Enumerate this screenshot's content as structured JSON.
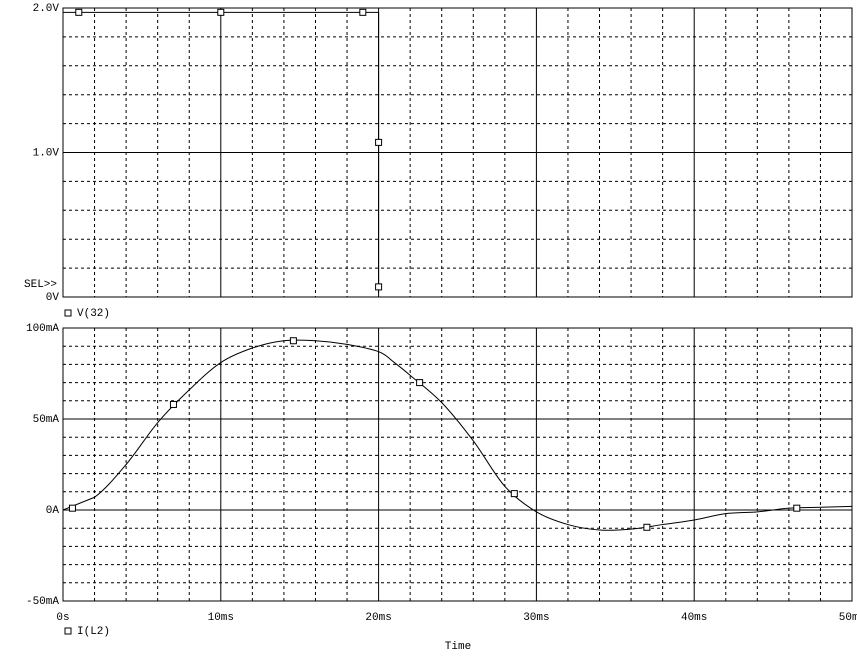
{
  "chart_data": [
    {
      "type": "line",
      "selection_label": "SEL>>",
      "xlim": [
        0,
        50
      ],
      "xticks": [
        0,
        10,
        20,
        30,
        40,
        50
      ],
      "ylim": [
        0,
        2
      ],
      "yticks": [
        {
          "value": 0,
          "label": "0V"
        },
        {
          "value": 1,
          "label": "1.0V"
        },
        {
          "value": 2,
          "label": "2.0V"
        }
      ],
      "grid": true,
      "series": [
        {
          "name": "V(32)",
          "color": "#000000",
          "x": [
            0,
            20,
            20
          ],
          "values": [
            1.97,
            1.97,
            0.03
          ],
          "markers": {
            "x": [
              1,
              10,
              19,
              20,
              20
            ],
            "values": [
              1.97,
              1.97,
              1.97,
              1.07,
              0.07
            ]
          }
        }
      ]
    },
    {
      "type": "line",
      "x_label": "Time",
      "xlim": [
        0,
        50
      ],
      "xticks": [
        {
          "value": 0,
          "label": "0s"
        },
        {
          "value": 10,
          "label": "10ms"
        },
        {
          "value": 20,
          "label": "20ms"
        },
        {
          "value": 30,
          "label": "30ms"
        },
        {
          "value": 40,
          "label": "40ms"
        },
        {
          "value": 50,
          "label": "50ms"
        }
      ],
      "ylim": [
        -50,
        100
      ],
      "yticks": [
        {
          "value": -50,
          "label": "-50mA"
        },
        {
          "value": 0,
          "label": "0A"
        },
        {
          "value": 50,
          "label": "50mA"
        },
        {
          "value": 100,
          "label": "100mA"
        }
      ],
      "grid": true,
      "series": [
        {
          "name": "I(L2)",
          "color": "#000000",
          "x": [
            0,
            2,
            4,
            6,
            8,
            10,
            12,
            14,
            16,
            18,
            20,
            21,
            22,
            24,
            26,
            28,
            30,
            32,
            34,
            36,
            38,
            40,
            42,
            44,
            46,
            48,
            50
          ],
          "values": [
            0,
            7,
            25,
            48,
            66,
            81,
            89,
            93,
            93,
            91,
            87,
            81,
            74,
            59,
            38,
            13,
            -1,
            -8,
            -11,
            -10.5,
            -8,
            -5.5,
            -2,
            -1,
            1,
            1.5,
            2
          ],
          "markers": {
            "x": [
              0.6,
              7,
              14.6,
              22.6,
              28.6,
              37,
              46.5
            ],
            "values": [
              1,
              58,
              93,
              70,
              9,
              -9.5,
              1
            ]
          }
        }
      ]
    }
  ]
}
